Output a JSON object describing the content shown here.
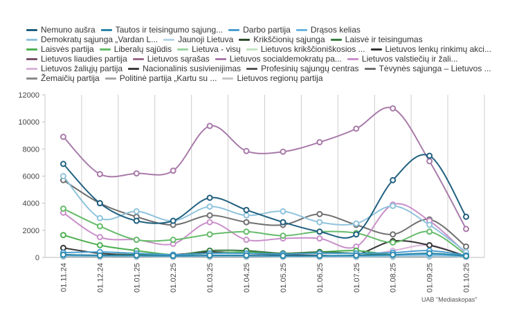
{
  "chart_data": {
    "type": "line",
    "title": "",
    "xlabel": "",
    "ylabel": "",
    "ylim": [
      0,
      12000
    ],
    "yticks": [
      "0",
      "2000",
      "4000",
      "6000",
      "8000",
      "10000",
      "12000"
    ],
    "categories": [
      "01.11.24",
      "01.12.24",
      "01.01.25",
      "01.02.25",
      "01.03.25",
      "01.04.25",
      "01.05.25",
      "01.06.25",
      "01.07.25",
      "01.08.25",
      "01.09.25",
      "01.10.25"
    ],
    "legend_position": "top",
    "series": [
      {
        "name": "Nemuno aušra",
        "color": "#1f5f7f",
        "values": [
          6900,
          4000,
          2700,
          2700,
          4400,
          3500,
          2600,
          1900,
          1700,
          5700,
          7500,
          3000
        ]
      },
      {
        "name": "Tautos ir teisingumo sąjung...",
        "color": "#2a85a8",
        "values": [
          200,
          150,
          150,
          120,
          150,
          150,
          120,
          120,
          150,
          200,
          300,
          100
        ]
      },
      {
        "name": "Darbo partija",
        "color": "#4a9ed0",
        "values": [
          350,
          400,
          300,
          200,
          300,
          300,
          250,
          300,
          300,
          350,
          500,
          150
        ]
      },
      {
        "name": "Drąsos kelias",
        "color": "#6bb5e0",
        "values": [
          150,
          120,
          120,
          100,
          120,
          120,
          100,
          100,
          100,
          150,
          200,
          80
        ]
      },
      {
        "name": "Demokratų sąjunga „Vardan L...",
        "color": "#8fc3dc",
        "values": [
          6000,
          2900,
          3400,
          2700,
          3750,
          3100,
          3400,
          2600,
          2500,
          3800,
          2400,
          400
        ]
      },
      {
        "name": "Jaunoji Lietuva",
        "color": "#b5d5e6",
        "values": [
          100,
          80,
          80,
          60,
          80,
          80,
          60,
          60,
          60,
          80,
          100,
          50
        ]
      },
      {
        "name": "Krikščionių sąjunga",
        "color": "#2d4d2d",
        "values": [
          100,
          80,
          80,
          60,
          80,
          80,
          60,
          60,
          60,
          80,
          100,
          50
        ]
      },
      {
        "name": "Laisvė ir teisingumas",
        "color": "#3a7d44",
        "values": [
          200,
          150,
          200,
          150,
          500,
          500,
          300,
          400,
          300,
          200,
          250,
          100
        ]
      },
      {
        "name": "Laisvės partija",
        "color": "#4caf50",
        "values": [
          1650,
          900,
          500,
          200,
          300,
          400,
          300,
          400,
          500,
          200,
          300,
          100
        ]
      },
      {
        "name": "Liberalų sąjūdis",
        "color": "#66bb6a",
        "values": [
          3600,
          2300,
          1300,
          1300,
          1700,
          1900,
          1600,
          1900,
          1800,
          1100,
          1900,
          200
        ]
      },
      {
        "name": "Lietuva - visų",
        "color": "#9ad39c",
        "values": [
          150,
          100,
          100,
          80,
          100,
          100,
          80,
          80,
          80,
          100,
          150,
          50
        ]
      },
      {
        "name": "Lietuvos krikščioniškosios ...",
        "color": "#bfe3c0",
        "values": [
          100,
          80,
          80,
          60,
          80,
          80,
          60,
          60,
          60,
          80,
          100,
          50
        ]
      },
      {
        "name": "Lietuvos lenkų rinkimų akci...",
        "color": "#333333",
        "values": [
          700,
          300,
          200,
          200,
          400,
          300,
          200,
          150,
          200,
          1200,
          900,
          100
        ]
      },
      {
        "name": "Lietuvos liaudies partija",
        "color": "#7a4f6a",
        "values": [
          150,
          100,
          100,
          80,
          100,
          100,
          80,
          80,
          80,
          100,
          150,
          50
        ]
      },
      {
        "name": "Lietuvos sąrašas",
        "color": "#9a6a8e",
        "values": [
          200,
          150,
          150,
          100,
          150,
          150,
          120,
          120,
          120,
          150,
          200,
          80
        ]
      },
      {
        "name": "Lietuvos socialdemokratų pa...",
        "color": "#a87aa8",
        "values": [
          8900,
          6150,
          6200,
          6400,
          9700,
          7850,
          7800,
          8500,
          9500,
          11000,
          7100,
          2100
        ]
      },
      {
        "name": "Lietuvos valstiečių ir žali...",
        "color": "#c98fc9",
        "values": [
          3300,
          1500,
          1300,
          1000,
          2600,
          1300,
          1400,
          1400,
          800,
          3900,
          2700,
          300
        ]
      },
      {
        "name": "Lietuvos žaliųjų partija",
        "color": "#d9b3d9",
        "values": [
          150,
          100,
          100,
          80,
          100,
          100,
          80,
          80,
          80,
          500,
          900,
          50
        ]
      },
      {
        "name": "Nacionalinis susivienijimas",
        "color": "#3b3b3b",
        "values": [
          100,
          80,
          80,
          60,
          80,
          80,
          60,
          60,
          60,
          80,
          100,
          50
        ]
      },
      {
        "name": "Profesinių sąjungų centras",
        "color": "#555555",
        "values": [
          80,
          60,
          60,
          50,
          60,
          60,
          50,
          50,
          50,
          60,
          80,
          40
        ]
      },
      {
        "name": "Tėvynės sąjunga – Lietuvos ...",
        "color": "#6f6f6f",
        "values": [
          5700,
          4000,
          3000,
          2400,
          3100,
          2600,
          2400,
          3200,
          2400,
          1700,
          2800,
          800
        ]
      },
      {
        "name": "Žemaičių partija",
        "color": "#8a8a8a",
        "values": [
          100,
          80,
          80,
          60,
          80,
          80,
          60,
          60,
          60,
          80,
          100,
          50
        ]
      },
      {
        "name": "Politinė partija „Kartu su ...",
        "color": "#a5a5a5",
        "values": [
          100,
          80,
          80,
          60,
          80,
          80,
          60,
          60,
          60,
          80,
          100,
          50
        ]
      },
      {
        "name": "Lietuvos regionų partija",
        "color": "#c5c5c5",
        "values": [
          150,
          100,
          100,
          80,
          100,
          100,
          80,
          80,
          80,
          100,
          150,
          50
        ]
      }
    ]
  },
  "credit": "UAB \"Mediaskopas\""
}
